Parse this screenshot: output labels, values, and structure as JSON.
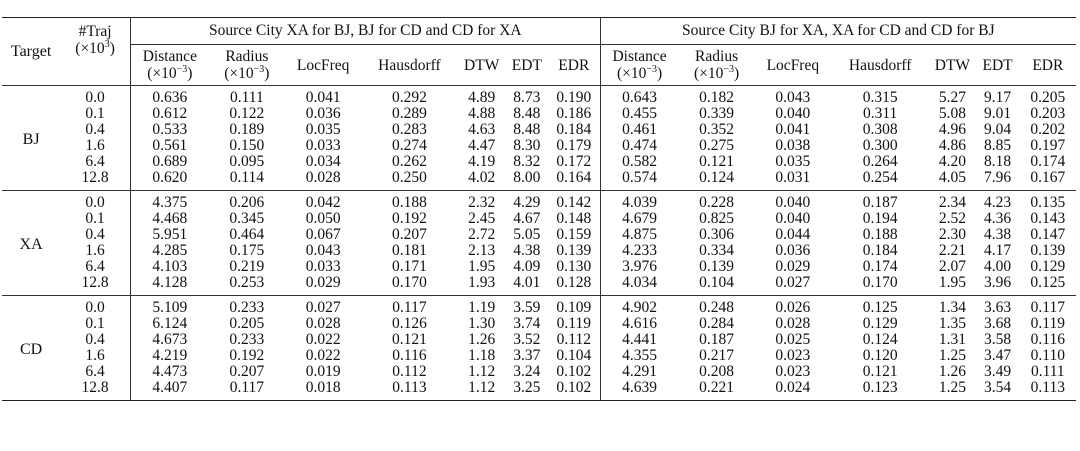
{
  "header": {
    "target": "Target",
    "traj": "#Traj",
    "traj_unit": "(×10",
    "traj_exp": "3",
    "traj_close": ")",
    "group1_title": "Source City XA for BJ, BJ for CD and CD for XA",
    "group2_title": "Source City BJ for XA, XA for CD and CD for BJ",
    "metrics": [
      {
        "label": "Distance",
        "unit": "(×10",
        "exp": "−3",
        "close": ")"
      },
      {
        "label": "Radius",
        "unit": "(×10",
        "exp": "−3",
        "close": ")"
      },
      {
        "label": "LocFreq"
      },
      {
        "label": "Hausdorff"
      },
      {
        "label": "DTW"
      },
      {
        "label": "EDT"
      },
      {
        "label": "EDR"
      }
    ]
  },
  "groups": [
    {
      "target": "BJ",
      "rows": [
        {
          "traj": "0.0",
          "g1": [
            "0.636",
            "0.111",
            "0.041",
            "0.292",
            "4.89",
            "8.73",
            "0.190"
          ],
          "g2": [
            "0.643",
            "0.182",
            "0.043",
            "0.315",
            "5.27",
            "9.17",
            "0.205"
          ]
        },
        {
          "traj": "0.1",
          "g1": [
            "0.612",
            "0.122",
            "0.036",
            "0.289",
            "4.88",
            "8.48",
            "0.186"
          ],
          "g2": [
            "0.455",
            "0.339",
            "0.040",
            "0.311",
            "5.08",
            "9.01",
            "0.203"
          ]
        },
        {
          "traj": "0.4",
          "g1": [
            "0.533",
            "0.189",
            "0.035",
            "0.283",
            "4.63",
            "8.48",
            "0.184"
          ],
          "g2": [
            "0.461",
            "0.352",
            "0.041",
            "0.308",
            "4.96",
            "9.04",
            "0.202"
          ]
        },
        {
          "traj": "1.6",
          "g1": [
            "0.561",
            "0.150",
            "0.033",
            "0.274",
            "4.47",
            "8.30",
            "0.179"
          ],
          "g2": [
            "0.474",
            "0.275",
            "0.038",
            "0.300",
            "4.86",
            "8.85",
            "0.197"
          ]
        },
        {
          "traj": "6.4",
          "g1": [
            "0.689",
            "0.095",
            "0.034",
            "0.262",
            "4.19",
            "8.32",
            "0.172"
          ],
          "g2": [
            "0.582",
            "0.121",
            "0.035",
            "0.264",
            "4.20",
            "8.18",
            "0.174"
          ]
        },
        {
          "traj": "12.8",
          "g1": [
            "0.620",
            "0.114",
            "0.028",
            "0.250",
            "4.02",
            "8.00",
            "0.164"
          ],
          "g2": [
            "0.574",
            "0.124",
            "0.031",
            "0.254",
            "4.05",
            "7.96",
            "0.167"
          ]
        }
      ]
    },
    {
      "target": "XA",
      "rows": [
        {
          "traj": "0.0",
          "g1": [
            "4.375",
            "0.206",
            "0.042",
            "0.188",
            "2.32",
            "4.29",
            "0.142"
          ],
          "g2": [
            "4.039",
            "0.228",
            "0.040",
            "0.187",
            "2.34",
            "4.23",
            "0.135"
          ]
        },
        {
          "traj": "0.1",
          "g1": [
            "4.468",
            "0.345",
            "0.050",
            "0.192",
            "2.45",
            "4.67",
            "0.148"
          ],
          "g2": [
            "4.679",
            "0.825",
            "0.040",
            "0.194",
            "2.52",
            "4.36",
            "0.143"
          ]
        },
        {
          "traj": "0.4",
          "g1": [
            "5.951",
            "0.464",
            "0.067",
            "0.207",
            "2.72",
            "5.05",
            "0.159"
          ],
          "g2": [
            "4.875",
            "0.306",
            "0.044",
            "0.188",
            "2.30",
            "4.38",
            "0.147"
          ]
        },
        {
          "traj": "1.6",
          "g1": [
            "4.285",
            "0.175",
            "0.043",
            "0.181",
            "2.13",
            "4.38",
            "0.139"
          ],
          "g2": [
            "4.233",
            "0.334",
            "0.036",
            "0.184",
            "2.21",
            "4.17",
            "0.139"
          ]
        },
        {
          "traj": "6.4",
          "g1": [
            "4.103",
            "0.219",
            "0.033",
            "0.171",
            "1.95",
            "4.09",
            "0.130"
          ],
          "g2": [
            "3.976",
            "0.139",
            "0.029",
            "0.174",
            "2.07",
            "4.00",
            "0.129"
          ]
        },
        {
          "traj": "12.8",
          "g1": [
            "4.128",
            "0.253",
            "0.029",
            "0.170",
            "1.93",
            "4.01",
            "0.128"
          ],
          "g2": [
            "4.034",
            "0.104",
            "0.027",
            "0.170",
            "1.95",
            "3.96",
            "0.125"
          ]
        }
      ]
    },
    {
      "target": "CD",
      "rows": [
        {
          "traj": "0.0",
          "g1": [
            "5.109",
            "0.233",
            "0.027",
            "0.117",
            "1.19",
            "3.59",
            "0.109"
          ],
          "g2": [
            "4.902",
            "0.248",
            "0.026",
            "0.125",
            "1.34",
            "3.63",
            "0.117"
          ]
        },
        {
          "traj": "0.1",
          "g1": [
            "6.124",
            "0.205",
            "0.028",
            "0.126",
            "1.30",
            "3.74",
            "0.119"
          ],
          "g2": [
            "4.616",
            "0.284",
            "0.028",
            "0.129",
            "1.35",
            "3.68",
            "0.119"
          ]
        },
        {
          "traj": "0.4",
          "g1": [
            "4.673",
            "0.233",
            "0.022",
            "0.121",
            "1.26",
            "3.52",
            "0.112"
          ],
          "g2": [
            "4.441",
            "0.187",
            "0.025",
            "0.124",
            "1.31",
            "3.58",
            "0.116"
          ]
        },
        {
          "traj": "1.6",
          "g1": [
            "4.219",
            "0.192",
            "0.022",
            "0.116",
            "1.18",
            "3.37",
            "0.104"
          ],
          "g2": [
            "4.355",
            "0.217",
            "0.023",
            "0.120",
            "1.25",
            "3.47",
            "0.110"
          ]
        },
        {
          "traj": "6.4",
          "g1": [
            "4.473",
            "0.207",
            "0.019",
            "0.112",
            "1.12",
            "3.24",
            "0.102"
          ],
          "g2": [
            "4.291",
            "0.208",
            "0.023",
            "0.121",
            "1.26",
            "3.49",
            "0.111"
          ]
        },
        {
          "traj": "12.8",
          "g1": [
            "4.407",
            "0.117",
            "0.018",
            "0.113",
            "1.12",
            "3.25",
            "0.102"
          ],
          "g2": [
            "4.639",
            "0.221",
            "0.024",
            "0.123",
            "1.25",
            "3.54",
            "0.113"
          ]
        }
      ]
    }
  ]
}
